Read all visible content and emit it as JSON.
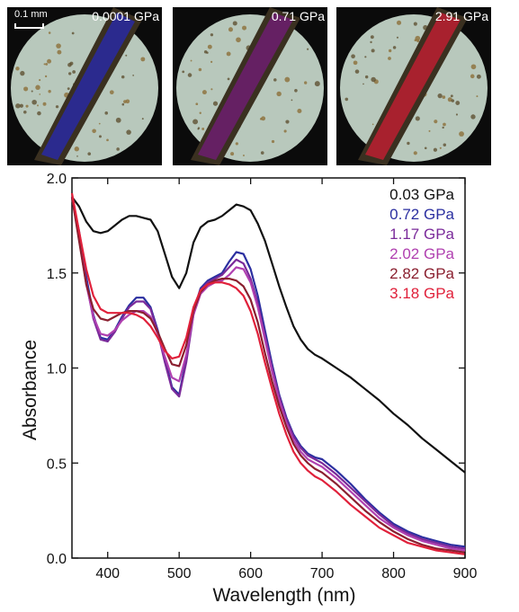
{
  "photos": {
    "scalebar_label": "0.1 mm",
    "panels": [
      {
        "label": "0.0001 GPa",
        "crystal_color": "#2a2a9a"
      },
      {
        "label": "0.71 GPa",
        "crystal_color": "#6a1f6a"
      },
      {
        "label": "2.91 GPa",
        "crystal_color": "#b52030"
      }
    ],
    "background_color": "#b8c8bc"
  },
  "chart_data": {
    "type": "line",
    "xlabel": "Wavelength (nm)",
    "ylabel": "Absorbance",
    "xlim": [
      350,
      900
    ],
    "ylim": [
      0.0,
      2.0
    ],
    "xticks": [
      "400",
      "500",
      "600",
      "700",
      "800",
      "900"
    ],
    "yticks": [
      "0.0",
      "0.5",
      "1.0",
      "1.5",
      "2.0"
    ],
    "legend_position": "top-right",
    "series": [
      {
        "name": "0.03 GPa",
        "color": "#111111",
        "x": [
          350,
          360,
          370,
          380,
          390,
          400,
          410,
          420,
          430,
          440,
          450,
          460,
          470,
          480,
          490,
          500,
          510,
          520,
          530,
          540,
          550,
          560,
          570,
          580,
          590,
          600,
          610,
          620,
          630,
          640,
          650,
          660,
          670,
          680,
          690,
          700,
          720,
          740,
          760,
          780,
          800,
          820,
          840,
          860,
          880,
          900
        ],
        "y": [
          1.9,
          1.85,
          1.77,
          1.72,
          1.71,
          1.72,
          1.75,
          1.78,
          1.8,
          1.8,
          1.79,
          1.78,
          1.72,
          1.6,
          1.48,
          1.42,
          1.5,
          1.66,
          1.74,
          1.77,
          1.78,
          1.8,
          1.83,
          1.86,
          1.85,
          1.83,
          1.76,
          1.67,
          1.55,
          1.43,
          1.32,
          1.22,
          1.15,
          1.1,
          1.07,
          1.05,
          1.0,
          0.95,
          0.89,
          0.83,
          0.76,
          0.7,
          0.63,
          0.57,
          0.51,
          0.45
        ]
      },
      {
        "name": "0.72 GPa",
        "color": "#2b2fa0",
        "x": [
          350,
          360,
          370,
          380,
          390,
          400,
          410,
          420,
          430,
          440,
          450,
          460,
          470,
          480,
          490,
          500,
          510,
          520,
          530,
          540,
          550,
          560,
          570,
          580,
          590,
          600,
          610,
          620,
          630,
          640,
          650,
          660,
          670,
          680,
          690,
          700,
          720,
          740,
          760,
          780,
          800,
          820,
          840,
          860,
          880,
          900
        ],
        "y": [
          1.9,
          1.72,
          1.48,
          1.28,
          1.16,
          1.15,
          1.2,
          1.27,
          1.33,
          1.37,
          1.37,
          1.32,
          1.2,
          1.05,
          0.9,
          0.86,
          1.05,
          1.3,
          1.42,
          1.46,
          1.48,
          1.5,
          1.56,
          1.61,
          1.6,
          1.52,
          1.38,
          1.2,
          1.02,
          0.86,
          0.74,
          0.65,
          0.59,
          0.55,
          0.53,
          0.52,
          0.46,
          0.39,
          0.31,
          0.24,
          0.18,
          0.14,
          0.11,
          0.09,
          0.07,
          0.06
        ]
      },
      {
        "name": "1.17 GPa",
        "color": "#7a2a9a",
        "x": [
          350,
          360,
          370,
          380,
          390,
          400,
          410,
          420,
          430,
          440,
          450,
          460,
          470,
          480,
          490,
          500,
          510,
          520,
          530,
          540,
          550,
          560,
          570,
          580,
          590,
          600,
          610,
          620,
          630,
          640,
          650,
          660,
          670,
          680,
          690,
          700,
          720,
          740,
          760,
          780,
          800,
          820,
          840,
          860,
          880,
          900
        ],
        "y": [
          1.9,
          1.7,
          1.45,
          1.26,
          1.15,
          1.14,
          1.19,
          1.26,
          1.32,
          1.35,
          1.35,
          1.31,
          1.19,
          1.03,
          0.89,
          0.85,
          1.03,
          1.28,
          1.41,
          1.45,
          1.47,
          1.49,
          1.53,
          1.57,
          1.55,
          1.47,
          1.34,
          1.17,
          1.0,
          0.85,
          0.73,
          0.64,
          0.58,
          0.54,
          0.52,
          0.5,
          0.44,
          0.37,
          0.3,
          0.23,
          0.17,
          0.13,
          0.1,
          0.08,
          0.06,
          0.05
        ]
      },
      {
        "name": "2.02 GPa",
        "color": "#b040b0",
        "x": [
          350,
          360,
          370,
          380,
          390,
          400,
          410,
          420,
          430,
          440,
          450,
          460,
          470,
          480,
          490,
          500,
          510,
          520,
          530,
          540,
          550,
          560,
          570,
          580,
          590,
          600,
          610,
          620,
          630,
          640,
          650,
          660,
          670,
          680,
          690,
          700,
          720,
          740,
          760,
          780,
          800,
          820,
          840,
          860,
          880,
          900
        ],
        "y": [
          1.9,
          1.68,
          1.44,
          1.27,
          1.18,
          1.17,
          1.2,
          1.25,
          1.28,
          1.3,
          1.3,
          1.27,
          1.18,
          1.06,
          0.95,
          0.93,
          1.07,
          1.28,
          1.39,
          1.43,
          1.45,
          1.46,
          1.49,
          1.53,
          1.52,
          1.45,
          1.32,
          1.15,
          0.98,
          0.83,
          0.71,
          0.62,
          0.56,
          0.52,
          0.5,
          0.48,
          0.42,
          0.35,
          0.28,
          0.21,
          0.16,
          0.12,
          0.09,
          0.07,
          0.05,
          0.04
        ]
      },
      {
        "name": "2.82 GPa",
        "color": "#8a1f2f",
        "x": [
          350,
          360,
          370,
          380,
          390,
          400,
          410,
          420,
          430,
          440,
          450,
          460,
          470,
          480,
          490,
          500,
          510,
          520,
          530,
          540,
          550,
          560,
          570,
          580,
          590,
          600,
          610,
          620,
          630,
          640,
          650,
          660,
          670,
          680,
          690,
          700,
          720,
          740,
          760,
          780,
          800,
          820,
          840,
          860,
          880,
          900
        ],
        "y": [
          1.9,
          1.67,
          1.44,
          1.31,
          1.26,
          1.25,
          1.27,
          1.29,
          1.3,
          1.3,
          1.29,
          1.26,
          1.19,
          1.1,
          1.02,
          1.01,
          1.12,
          1.3,
          1.4,
          1.44,
          1.46,
          1.47,
          1.47,
          1.46,
          1.43,
          1.36,
          1.24,
          1.08,
          0.93,
          0.8,
          0.69,
          0.6,
          0.54,
          0.5,
          0.47,
          0.45,
          0.39,
          0.32,
          0.25,
          0.19,
          0.14,
          0.1,
          0.07,
          0.05,
          0.04,
          0.03
        ]
      },
      {
        "name": "3.18 GPa",
        "color": "#e0203a",
        "x": [
          350,
          360,
          370,
          380,
          390,
          400,
          410,
          420,
          430,
          440,
          450,
          460,
          470,
          480,
          490,
          500,
          510,
          520,
          530,
          540,
          550,
          560,
          570,
          580,
          590,
          600,
          610,
          620,
          630,
          640,
          650,
          660,
          670,
          680,
          690,
          700,
          720,
          740,
          760,
          780,
          800,
          820,
          840,
          860,
          880,
          900
        ],
        "y": [
          1.92,
          1.72,
          1.52,
          1.38,
          1.31,
          1.29,
          1.29,
          1.29,
          1.29,
          1.28,
          1.26,
          1.22,
          1.16,
          1.09,
          1.05,
          1.06,
          1.16,
          1.32,
          1.41,
          1.44,
          1.45,
          1.45,
          1.44,
          1.42,
          1.38,
          1.3,
          1.18,
          1.03,
          0.89,
          0.76,
          0.65,
          0.56,
          0.5,
          0.46,
          0.43,
          0.41,
          0.35,
          0.28,
          0.22,
          0.16,
          0.12,
          0.08,
          0.06,
          0.04,
          0.03,
          0.02
        ]
      }
    ]
  }
}
